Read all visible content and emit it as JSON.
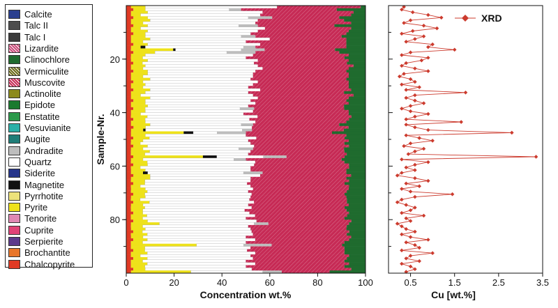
{
  "chart_data": [
    {
      "type": "bar",
      "orientation": "horizontal",
      "stacked": true,
      "xlabel": "Concentration wt.%",
      "ylabel": "Sample-Nr.",
      "xlim": [
        0,
        100
      ],
      "ylim": [
        0,
        100
      ],
      "x_ticks": [
        "0",
        "20",
        "40",
        "60",
        "80",
        "100"
      ],
      "y_ticks": [
        "20",
        "40",
        "60",
        "80"
      ],
      "legend_position": "left",
      "legend": [
        {
          "name": "Calcite",
          "color": "#2a3f8f"
        },
        {
          "name": "Talc II",
          "color": "#4d4d4d"
        },
        {
          "name": "Talc I",
          "color": "#3a3a3a"
        },
        {
          "name": "Lizardite",
          "color": "#c94a78",
          "pattern": "hatch"
        },
        {
          "name": "Clinochlore",
          "color": "#1f6b2e"
        },
        {
          "name": "Vermiculite",
          "color": "#6a6a18",
          "pattern": "hatch"
        },
        {
          "name": "Muscovite",
          "color": "#c62a55",
          "pattern": "hatch"
        },
        {
          "name": "Actinolite",
          "color": "#8c8a1c"
        },
        {
          "name": "Epidote",
          "color": "#1a7a2e"
        },
        {
          "name": "Enstatite",
          "color": "#2a9a4a"
        },
        {
          "name": "Vesuvianite",
          "color": "#2ab0a8"
        },
        {
          "name": "Augite",
          "color": "#1f7d78"
        },
        {
          "name": "Andradite",
          "color": "#bdbdbd"
        },
        {
          "name": "Quartz",
          "color": "#ffffff"
        },
        {
          "name": "Siderite",
          "color": "#26358a"
        },
        {
          "name": "Magnetite",
          "color": "#111111"
        },
        {
          "name": "Pyrrhotite",
          "color": "#ece27a"
        },
        {
          "name": "Pyrite",
          "color": "#eee21a"
        },
        {
          "name": "Tenorite",
          "color": "#e089b3"
        },
        {
          "name": "Cuprite",
          "color": "#e04277"
        },
        {
          "name": "Serpierite",
          "color": "#5c3a8c"
        },
        {
          "name": "Brochantite",
          "color": "#e8762a"
        },
        {
          "name": "Chalcopyrite",
          "color": "#e03a24"
        }
      ],
      "series": [
        {
          "name": "Chalcopyrite",
          "values": [
            2,
            3,
            2,
            2,
            3,
            2,
            2,
            3,
            2,
            2,
            3,
            2,
            2,
            2,
            3,
            2,
            2,
            3,
            2,
            2,
            2,
            3,
            2,
            2,
            3,
            2,
            2,
            2,
            3,
            2,
            2,
            3,
            2,
            2,
            2,
            3,
            2,
            2,
            3,
            2,
            2,
            2,
            3,
            2,
            2,
            3,
            2,
            2,
            2,
            3,
            2,
            2,
            3,
            2,
            2,
            2,
            3,
            2,
            2,
            3,
            2,
            2,
            2,
            3,
            2,
            2,
            3,
            2,
            2,
            2,
            3,
            2,
            2,
            3,
            2,
            2,
            2,
            3,
            2,
            2,
            3,
            2,
            2,
            2,
            3,
            2,
            2,
            3,
            2,
            2,
            2,
            3,
            2,
            2,
            3,
            2,
            2,
            2,
            3,
            2
          ]
        },
        {
          "name": "Pyrite",
          "values": [
            6,
            5,
            7,
            4,
            6,
            8,
            5,
            6,
            4,
            7,
            5,
            6,
            8,
            5,
            6,
            4,
            18,
            9,
            6,
            5,
            7,
            4,
            6,
            5,
            6,
            7,
            5,
            8,
            4,
            6,
            5,
            7,
            6,
            4,
            8,
            5,
            6,
            7,
            5,
            6,
            4,
            7,
            5,
            6,
            8,
            5,
            5,
            22,
            6,
            7,
            5,
            4,
            6,
            5,
            8,
            6,
            30,
            5,
            7,
            6,
            4,
            6,
            5,
            7,
            8,
            6,
            5,
            4,
            6,
            7,
            5,
            6,
            4,
            7,
            5,
            6,
            5,
            4,
            7,
            5,
            6,
            12,
            5,
            6,
            4,
            7,
            5,
            6,
            5,
            28,
            6,
            5,
            7,
            4,
            6,
            5,
            7,
            6,
            5,
            25
          ]
        },
        {
          "name": "Magnetite",
          "values": [
            0,
            0,
            0,
            0,
            0,
            0,
            0,
            0,
            0,
            0,
            0,
            0,
            0,
            0,
            0,
            2,
            1,
            0,
            0,
            0,
            0,
            0,
            0,
            0,
            0,
            0,
            0,
            0,
            0,
            0,
            0,
            0,
            0,
            0,
            0,
            0,
            0,
            0,
            0,
            0,
            0,
            0,
            0,
            0,
            0,
            0,
            1,
            4,
            0,
            0,
            0,
            0,
            0,
            0,
            0,
            0,
            6,
            0,
            0,
            0,
            0,
            0,
            2,
            0,
            0,
            0,
            0,
            0,
            0,
            0,
            0,
            0,
            0,
            0,
            0,
            0,
            0,
            0,
            0,
            0,
            0,
            0,
            0,
            0,
            0,
            0,
            0,
            0,
            0,
            0,
            0,
            0,
            0,
            0,
            0,
            0,
            0,
            0,
            0,
            0
          ]
        },
        {
          "name": "Quartz",
          "values": [
            55,
            35,
            48,
            50,
            42,
            45,
            47,
            38,
            52,
            46,
            44,
            40,
            50,
            43,
            47,
            41,
            28,
            30,
            45,
            44,
            46,
            48,
            47,
            50,
            45,
            44,
            46,
            42,
            48,
            45,
            44,
            46,
            43,
            47,
            45,
            44,
            46,
            42,
            40,
            45,
            43,
            47,
            44,
            46,
            38,
            44,
            40,
            10,
            42,
            46,
            44,
            47,
            45,
            40,
            43,
            44,
            20,
            38,
            46,
            45,
            47,
            44,
            40,
            46,
            42,
            45,
            44,
            47,
            45,
            43,
            46,
            44,
            47,
            45,
            44,
            46,
            43,
            45,
            47,
            44,
            46,
            40,
            45,
            44,
            47,
            45,
            43,
            46,
            44,
            20,
            45,
            44,
            46,
            47,
            45,
            44,
            46,
            43,
            45,
            30
          ]
        },
        {
          "name": "Andradite",
          "values": [
            0,
            5,
            0,
            0,
            10,
            0,
            0,
            8,
            0,
            0,
            0,
            6,
            0,
            0,
            0,
            5,
            10,
            12,
            0,
            0,
            0,
            0,
            0,
            0,
            0,
            0,
            0,
            0,
            0,
            0,
            0,
            0,
            0,
            0,
            0,
            0,
            0,
            0,
            6,
            0,
            0,
            0,
            0,
            0,
            5,
            0,
            4,
            12,
            0,
            0,
            0,
            0,
            0,
            6,
            0,
            0,
            10,
            5,
            0,
            0,
            0,
            0,
            8,
            0,
            0,
            0,
            0,
            0,
            0,
            0,
            0,
            0,
            0,
            0,
            0,
            0,
            0,
            0,
            0,
            0,
            0,
            6,
            0,
            0,
            0,
            0,
            0,
            0,
            0,
            12,
            0,
            0,
            0,
            0,
            0,
            0,
            0,
            0,
            0,
            8
          ]
        },
        {
          "name": "Muscovite",
          "values": [
            35,
            40,
            38,
            38,
            28,
            36,
            40,
            32,
            36,
            38,
            40,
            36,
            32,
            42,
            36,
            38,
            30,
            35,
            40,
            42,
            38,
            40,
            40,
            36,
            38,
            40,
            40,
            40,
            38,
            40,
            42,
            38,
            40,
            42,
            38,
            40,
            39,
            40,
            38,
            40,
            44,
            40,
            42,
            38,
            36,
            40,
            38,
            36,
            42,
            38,
            42,
            40,
            40,
            38,
            40,
            42,
            25,
            40,
            38,
            40,
            42,
            40,
            35,
            38,
            40,
            42,
            42,
            42,
            40,
            42,
            40,
            40,
            42,
            40,
            42,
            40,
            43,
            42,
            40,
            42,
            40,
            34,
            42,
            40,
            42,
            40,
            44,
            40,
            42,
            30,
            40,
            42,
            38,
            42,
            40,
            42,
            40,
            42,
            42,
            20
          ]
        },
        {
          "name": "Clinochlore",
          "values": [
            2,
            12,
            5,
            6,
            11,
            9,
            6,
            13,
            6,
            7,
            8,
            10,
            8,
            8,
            8,
            8,
            13,
            11,
            7,
            9,
            7,
            8,
            5,
            7,
            8,
            7,
            7,
            8,
            7,
            7,
            7,
            6,
            9,
            5,
            7,
            8,
            7,
            9,
            9,
            7,
            7,
            6,
            7,
            8,
            11,
            7,
            9,
            14,
            8,
            9,
            7,
            9,
            7,
            9,
            9,
            8,
            9,
            10,
            9,
            7,
            7,
            8,
            8,
            6,
            8,
            7,
            9,
            7,
            7,
            8,
            9,
            8,
            8,
            8,
            7,
            9,
            8,
            7,
            8,
            9,
            6,
            7,
            8,
            8,
            7,
            8,
            6,
            7,
            9,
            10,
            9,
            9,
            9,
            7,
            8,
            9,
            7,
            9,
            6,
            15
          ]
        }
      ]
    },
    {
      "type": "line",
      "orientation": "vertical",
      "xlabel": "Cu [wt.%]",
      "x_ticks": [
        "0.5",
        "1.5",
        "2.5",
        "3.5"
      ],
      "xlim": [
        0,
        3.5
      ],
      "ylim": [
        0,
        100
      ],
      "legend_position": "top-right",
      "series": [
        {
          "name": "XRD",
          "color": "#cc3b2e",
          "marker": "diamond",
          "x": [
            0.35,
            0.3,
            0.55,
            0.9,
            1.2,
            0.5,
            0.35,
            0.8,
            1.1,
            0.55,
            0.3,
            0.8,
            0.6,
            0.4,
            1.0,
            0.9,
            1.5,
            0.5,
            0.3,
            0.9,
            0.75,
            0.4,
            0.3,
            0.6,
            0.9,
            0.35,
            0.25,
            0.5,
            0.6,
            0.3,
            0.7,
            0.4,
            1.75,
            0.6,
            0.4,
            0.6,
            0.8,
            0.5,
            0.3,
            0.5,
            0.9,
            0.6,
            0.4,
            1.65,
            0.4,
            0.6,
            0.9,
            2.8,
            0.4,
            0.7,
            1.0,
            0.5,
            0.35,
            0.8,
            0.6,
            0.45,
            3.35,
            0.3,
            0.9,
            0.6,
            0.4,
            0.6,
            0.3,
            0.2,
            0.6,
            0.9,
            0.4,
            0.7,
            0.3,
            0.5,
            1.45,
            0.6,
            0.3,
            0.2,
            0.4,
            0.6,
            0.5,
            0.3,
            0.8,
            0.4,
            0.5,
            0.2,
            0.3,
            0.4,
            0.6,
            0.3,
            0.5,
            0.9,
            0.4,
            0.6,
            0.7,
            0.3,
            1.0,
            0.5,
            0.4,
            0.7,
            0.3,
            0.5,
            0.6,
            0.4
          ],
          "y": [
            1,
            2,
            3,
            4,
            5,
            6,
            7,
            8,
            9,
            10,
            11,
            12,
            13,
            14,
            15,
            16,
            17,
            18,
            19,
            20,
            21,
            22,
            23,
            24,
            25,
            26,
            27,
            28,
            29,
            30,
            31,
            32,
            33,
            34,
            35,
            36,
            37,
            38,
            39,
            40,
            41,
            42,
            43,
            44,
            45,
            46,
            47,
            48,
            49,
            50,
            51,
            52,
            53,
            54,
            55,
            56,
            57,
            58,
            59,
            60,
            61,
            62,
            63,
            64,
            65,
            66,
            67,
            68,
            69,
            70,
            71,
            72,
            73,
            74,
            75,
            76,
            77,
            78,
            79,
            80,
            81,
            82,
            83,
            84,
            85,
            86,
            87,
            88,
            89,
            90,
            91,
            92,
            93,
            94,
            95,
            96,
            97,
            98,
            99,
            100
          ]
        }
      ]
    }
  ]
}
